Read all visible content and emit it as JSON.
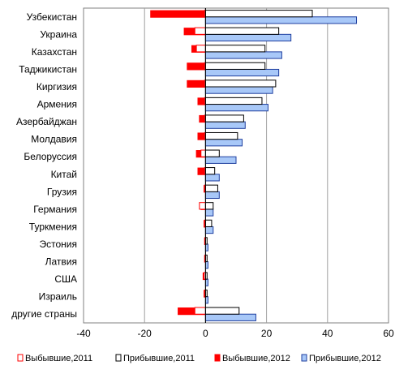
{
  "chart_data": {
    "type": "bar",
    "orientation": "horizontal",
    "categories": [
      "Узбекистан",
      "Украина",
      "Казахстан",
      "Таджикистан",
      "Киргизия",
      "Армения",
      "Азербайджан",
      "Молдавия",
      "Белоруссия",
      "Китай",
      "Грузия",
      "Германия",
      "Туркмения",
      "Эстония",
      "Латвия",
      "США",
      "Израиль",
      "другие страны"
    ],
    "series": [
      {
        "name": "Выбывшие,2011",
        "color": "#ff0000",
        "fill": "#ffffff",
        "values": [
          -0.3,
          -3.5,
          -3.0,
          -0.3,
          -0.3,
          -0.3,
          -0.3,
          -0.3,
          -1.5,
          -0.3,
          -0.3,
          -2.0,
          -0.3,
          -0.2,
          -0.2,
          -0.5,
          -0.3,
          -3.5
        ]
      },
      {
        "name": "Прибывшие,2011",
        "color": "#000000",
        "fill": "#ffffff",
        "values": [
          35,
          24,
          19.5,
          19.5,
          23,
          18.5,
          12.5,
          10.5,
          4.5,
          3,
          4,
          2.5,
          2,
          0.5,
          0.5,
          0.5,
          0.5,
          11
        ]
      },
      {
        "name": "Выбывшие,2012",
        "color": "#ff0000",
        "fill": "#ff0000",
        "values": [
          -18,
          -7,
          -4.5,
          -6,
          -6,
          -2.5,
          -2,
          -2.5,
          -3,
          -2.5,
          -0.5,
          -1.5,
          -0.5,
          -0.3,
          -0.3,
          -0.8,
          -0.5,
          -9
        ]
      },
      {
        "name": "Прибывшие,2012",
        "color": "#1f3f9f",
        "fill": "#a8c8f8",
        "values": [
          49.5,
          28,
          25,
          24,
          22,
          20.5,
          13,
          12,
          10,
          4.5,
          4.5,
          2.5,
          2.5,
          0.8,
          0.8,
          0.8,
          0.8,
          16.5
        ]
      }
    ],
    "xlim": [
      -40,
      60
    ],
    "xticks": [
      "-40",
      "-20",
      "0",
      "20",
      "40",
      "60"
    ],
    "grid": true,
    "legend": "bottom"
  }
}
